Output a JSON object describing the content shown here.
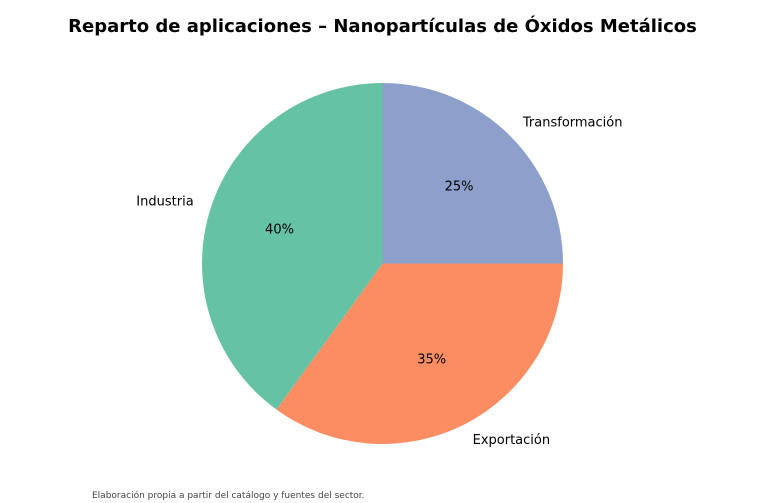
{
  "chart_data": {
    "type": "pie",
    "title": "Reparto de aplicaciones – Nanopartículas de Óxidos Metálicos",
    "slices": [
      {
        "label": "Transformación",
        "value": 25,
        "pct_label": "25%",
        "color": "#8da0cb"
      },
      {
        "label": "Exportación",
        "value": 35,
        "pct_label": "35%",
        "color": "#fc8d62"
      },
      {
        "label": "Industria",
        "value": 40,
        "pct_label": "40%",
        "color": "#66c2a5"
      }
    ],
    "start_angle_deg": 90,
    "direction": "clockwise",
    "legend": "none",
    "source_note": "Elaboración propia a partir del catálogo y fuentes del sector."
  }
}
